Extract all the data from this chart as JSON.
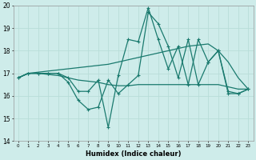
{
  "xlabel": "Humidex (Indice chaleur)",
  "x": [
    0,
    1,
    2,
    3,
    4,
    5,
    6,
    7,
    8,
    9,
    10,
    11,
    12,
    13,
    14,
    15,
    16,
    17,
    18,
    19,
    20,
    21,
    22,
    23
  ],
  "line_zigzag1": [
    16.8,
    17.0,
    17.0,
    17.0,
    17.0,
    16.8,
    16.2,
    16.2,
    16.7,
    14.6,
    16.9,
    18.5,
    18.4,
    19.9,
    18.5,
    17.2,
    18.2,
    16.5,
    18.5,
    17.5,
    18.0,
    16.2,
    16.1,
    16.3
  ],
  "line_zigzag2": [
    16.8,
    17.0,
    17.0,
    17.0,
    17.0,
    16.6,
    15.8,
    15.4,
    15.5,
    16.7,
    16.1,
    16.5,
    16.9,
    19.7,
    19.2,
    18.2,
    16.8,
    18.5,
    16.5,
    17.5,
    18.0,
    16.1,
    16.1,
    16.3
  ],
  "line_upper": [
    16.8,
    17.0,
    17.05,
    17.1,
    17.15,
    17.2,
    17.25,
    17.3,
    17.35,
    17.4,
    17.5,
    17.6,
    17.7,
    17.8,
    17.9,
    18.0,
    18.1,
    18.2,
    18.25,
    18.3,
    18.0,
    17.5,
    16.8,
    16.3
  ],
  "line_lower": [
    16.8,
    17.0,
    17.0,
    16.95,
    16.9,
    16.8,
    16.7,
    16.65,
    16.6,
    16.5,
    16.45,
    16.45,
    16.5,
    16.5,
    16.5,
    16.5,
    16.5,
    16.5,
    16.5,
    16.5,
    16.5,
    16.4,
    16.3,
    16.3
  ],
  "color": "#1a7a6e",
  "bg_color": "#ceecea",
  "grid_color": "#b8ddd9",
  "ylim": [
    14,
    20
  ],
  "xlim_min": -0.5,
  "xlim_max": 23.5
}
